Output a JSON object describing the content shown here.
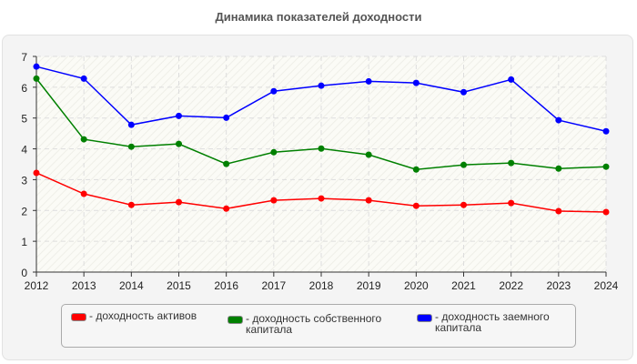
{
  "chart_data": {
    "type": "line",
    "title": "Динамика показателей доходности",
    "xlabel": "",
    "ylabel": "",
    "categories": [
      "2012",
      "2013",
      "2014",
      "2015",
      "2016",
      "2017",
      "2018",
      "2019",
      "2020",
      "2021",
      "2022",
      "2023",
      "2024"
    ],
    "ylim": [
      0,
      7
    ],
    "yticks": [
      0,
      1,
      2,
      3,
      4,
      5,
      6,
      7
    ],
    "grid": true,
    "legend_position": "bottom",
    "series": [
      {
        "name": "- доходность активов",
        "color": "#ff0000",
        "values": [
          3.22,
          2.54,
          2.18,
          2.27,
          2.06,
          2.33,
          2.39,
          2.33,
          2.15,
          2.18,
          2.24,
          1.98,
          1.95
        ]
      },
      {
        "name": "- доходность собственного капитала",
        "color": "#008000",
        "values": [
          6.28,
          4.31,
          4.07,
          4.16,
          3.51,
          3.89,
          4.01,
          3.81,
          3.33,
          3.48,
          3.54,
          3.36,
          3.42
        ]
      },
      {
        "name": "- доходность заемного капитала",
        "color": "#0000ff",
        "values": [
          6.67,
          6.28,
          4.78,
          5.07,
          5.01,
          5.87,
          6.05,
          6.19,
          6.14,
          5.84,
          6.25,
          4.93,
          4.57
        ]
      }
    ]
  }
}
